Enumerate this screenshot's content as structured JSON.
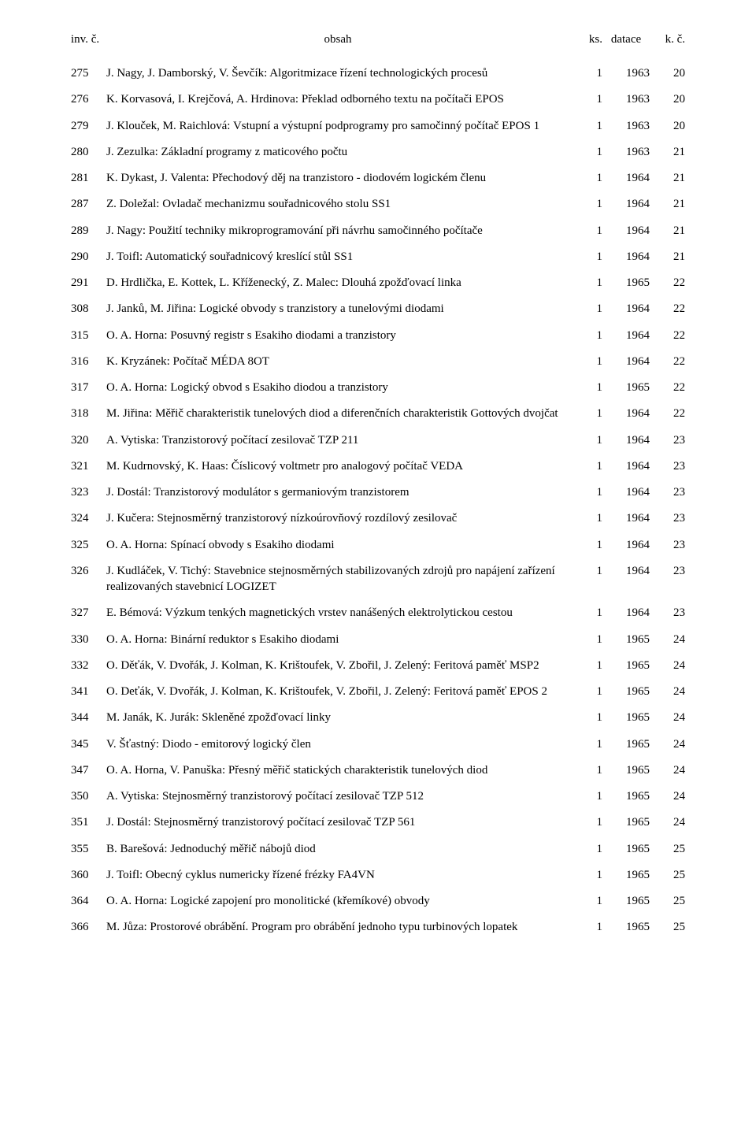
{
  "header": {
    "inv": "inv. č.",
    "obsah": "obsah",
    "ks": "ks.",
    "datace": "datace",
    "kc": "k. č."
  },
  "rows": [
    {
      "inv": "275",
      "obsah": "J. Nagy, J. Damborský, V. Ševčík: Algoritmizace řízení technologických procesů",
      "ks": "1",
      "datace": "1963",
      "kc": "20"
    },
    {
      "inv": "276",
      "obsah": "K. Korvasová, I. Krejčová, A. Hrdinova: Překlad odborného textu na počítači EPOS",
      "ks": "1",
      "datace": "1963",
      "kc": "20"
    },
    {
      "inv": "279",
      "obsah": "J. Klouček, M. Raichlová: Vstupní a výstupní podprogramy pro samočinný počítač EPOS 1",
      "ks": "1",
      "datace": "1963",
      "kc": "20"
    },
    {
      "inv": "280",
      "obsah": "J. Zezulka: Základní programy z maticového počtu",
      "ks": "1",
      "datace": "1963",
      "kc": "21"
    },
    {
      "inv": "281",
      "obsah": "K. Dykast, J. Valenta: Přechodový děj na tranzistoro - diodovém logickém členu",
      "ks": "1",
      "datace": "1964",
      "kc": "21"
    },
    {
      "inv": "287",
      "obsah": "Z. Doležal: Ovladač mechanizmu souřadnicového stolu SS1",
      "ks": "1",
      "datace": "1964",
      "kc": "21"
    },
    {
      "inv": "289",
      "obsah": "J. Nagy: Použití techniky mikroprogramování při návrhu samočinného počítače",
      "ks": "1",
      "datace": "1964",
      "kc": "21"
    },
    {
      "inv": "290",
      "obsah": "J. Toifl: Automatický souřadnicový kreslící stůl SS1",
      "ks": "1",
      "datace": "1964",
      "kc": "21"
    },
    {
      "inv": "291",
      "obsah": "D. Hrdlička, E. Kottek, L. Kříženecký, Z. Malec: Dlouhá zpožďovací linka",
      "ks": "1",
      "datace": "1965",
      "kc": "22"
    },
    {
      "inv": "308",
      "obsah": "J. Janků, M. Jiřina: Logické obvody s tranzistory a tunelovými diodami",
      "ks": "1",
      "datace": "1964",
      "kc": "22"
    },
    {
      "inv": "315",
      "obsah": "O. A. Horna: Posuvný registr s Esakiho diodami a tranzistory",
      "ks": "1",
      "datace": "1964",
      "kc": "22"
    },
    {
      "inv": "316",
      "obsah": "K. Kryzánek: Počítač MÉDA 8OT",
      "ks": "1",
      "datace": "1964",
      "kc": "22"
    },
    {
      "inv": "317",
      "obsah": "O. A. Horna: Logický obvod s Esakiho diodou a tranzistory",
      "ks": "1",
      "datace": "1965",
      "kc": "22"
    },
    {
      "inv": "318",
      "obsah": "M. Jiřina: Měřič charakteristik tunelových diod a diferenčních charakteristik Gottových dvojčat",
      "ks": "1",
      "datace": "1964",
      "kc": "22"
    },
    {
      "inv": "320",
      "obsah": "A. Vytiska: Tranzistorový počítací zesilovač TZP 211",
      "ks": "1",
      "datace": "1964",
      "kc": "23"
    },
    {
      "inv": "321",
      "obsah": "M. Kudrnovský, K. Haas: Číslicový voltmetr pro analogový počítač VEDA",
      "ks": "1",
      "datace": "1964",
      "kc": "23"
    },
    {
      "inv": "323",
      "obsah": "J. Dostál: Tranzistorový modulátor s germaniovým tranzistorem",
      "ks": "1",
      "datace": "1964",
      "kc": "23"
    },
    {
      "inv": "324",
      "obsah": "J. Kučera: Stejnosměrný tranzistorový nízkoúrovňový rozdílový zesilovač",
      "ks": "1",
      "datace": "1964",
      "kc": "23"
    },
    {
      "inv": "325",
      "obsah": "O. A. Horna: Spínací obvody s Esakiho diodami",
      "ks": "1",
      "datace": "1964",
      "kc": "23"
    },
    {
      "inv": "326",
      "obsah": "J. Kudláček, V. Tichý: Stavebnice stejnosměrných stabilizovaných zdrojů pro napájení zařízení realizovaných stavebnicí LOGIZET",
      "ks": "1",
      "datace": "1964",
      "kc": "23"
    },
    {
      "inv": "327",
      "obsah": "E. Bémová: Výzkum tenkých magnetických vrstev nanášených elektrolytickou cestou",
      "ks": "1",
      "datace": "1964",
      "kc": "23"
    },
    {
      "inv": "330",
      "obsah": "O. A. Horna: Binární reduktor s Esakiho diodami",
      "ks": "1",
      "datace": "1965",
      "kc": "24"
    },
    {
      "inv": "332",
      "obsah": "O. Děťák, V. Dvořák, J. Kolman, K. Krištoufek, V. Zbořil, J. Zelený: Feritová paměť MSP2",
      "ks": "1",
      "datace": "1965",
      "kc": "24"
    },
    {
      "inv": "341",
      "obsah": "O. Deťák, V. Dvořák, J. Kolman, K. Krištoufek, V. Zbořil, J. Zelený: Feritová paměť EPOS 2",
      "ks": "1",
      "datace": "1965",
      "kc": "24"
    },
    {
      "inv": "344",
      "obsah": "M. Janák, K. Jurák: Skleněné zpožďovací linky",
      "ks": "1",
      "datace": "1965",
      "kc": "24"
    },
    {
      "inv": "345",
      "obsah": "V. Šťastný: Diodo - emitorový logický člen",
      "ks": "1",
      "datace": "1965",
      "kc": "24"
    },
    {
      "inv": "347",
      "obsah": "O. A. Horna, V. Panuška: Přesný měřič statických charakteristik tunelových diod",
      "ks": "1",
      "datace": "1965",
      "kc": "24"
    },
    {
      "inv": "350",
      "obsah": "A. Vytiska: Stejnosměrný tranzistorový počítací zesilovač TZP 512",
      "ks": "1",
      "datace": "1965",
      "kc": "24"
    },
    {
      "inv": "351",
      "obsah": "J. Dostál: Stejnosměrný tranzistorový počítací zesilovač TZP 561",
      "ks": "1",
      "datace": "1965",
      "kc": "24"
    },
    {
      "inv": "355",
      "obsah": "B. Barešová: Jednoduchý měřič nábojů diod",
      "ks": "1",
      "datace": "1965",
      "kc": "25"
    },
    {
      "inv": "360",
      "obsah": "J. Toifl: Obecný cyklus numericky řízené frézky FA4VN",
      "ks": "1",
      "datace": "1965",
      "kc": "25"
    },
    {
      "inv": "364",
      "obsah": "O. A. Horna: Logické zapojení pro monolitické (křemíkové) obvody",
      "ks": "1",
      "datace": "1965",
      "kc": "25"
    },
    {
      "inv": "366",
      "obsah": "M. Jůza: Prostorové obrábění. Program pro obrábění jednoho typu turbinových lopatek",
      "ks": "1",
      "datace": "1965",
      "kc": "25"
    }
  ]
}
